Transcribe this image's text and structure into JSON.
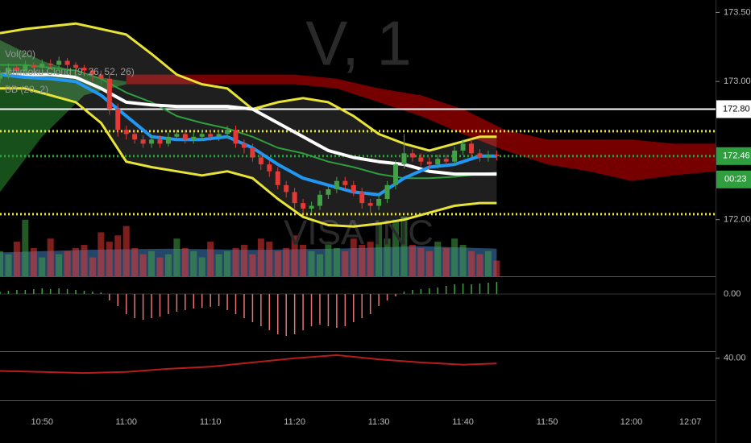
{
  "chart_data": [
    {
      "type": "candlestick",
      "annotations": [
        "Vol(20)",
        "Ichimoku Cloud (9, 26, 52, 26)",
        "BB (20, 2)"
      ],
      "watermark": [
        "V, 1",
        "VISA INC"
      ],
      "up_color": "#43a047",
      "down_color": "#e53935",
      "xlim": [
        "10:45",
        "12:10"
      ],
      "ylim": [
        171.59,
        173.59
      ],
      "xticks": [
        "10:50",
        "11:00",
        "11:10",
        "11:20",
        "11:30",
        "11:40",
        "11:50",
        "12:00",
        "12:07"
      ],
      "yticks": [
        {
          "value": 173.5,
          "label": "173.50"
        },
        {
          "value": 173,
          "label": "173.00"
        },
        {
          "value": 172,
          "label": "172.00"
        }
      ],
      "x": [
        "10:45",
        "10:46",
        "10:47",
        "10:48",
        "10:49",
        "10:50",
        "10:51",
        "10:52",
        "10:53",
        "10:54",
        "10:55",
        "10:56",
        "10:57",
        "10:58",
        "10:59",
        "11:00",
        "11:01",
        "11:02",
        "11:03",
        "11:04",
        "11:05",
        "11:06",
        "11:07",
        "11:08",
        "11:09",
        "11:10",
        "11:11",
        "11:12",
        "11:13",
        "11:14",
        "11:15",
        "11:16",
        "11:17",
        "11:18",
        "11:19",
        "11:20",
        "11:21",
        "11:22",
        "11:23",
        "11:24",
        "11:25",
        "11:26",
        "11:27",
        "11:28",
        "11:29",
        "11:30",
        "11:31",
        "11:32",
        "11:33",
        "11:34",
        "11:35",
        "11:36",
        "11:37",
        "11:38",
        "11:39",
        "11:40",
        "11:41",
        "11:42",
        "11:43",
        "11:44"
      ],
      "open": [
        173.02,
        173.05,
        173.1,
        173.08,
        173.12,
        173.1,
        173.13,
        173.12,
        173.15,
        173.12,
        173.1,
        173.08,
        173.05,
        173.02,
        172.8,
        172.65,
        172.62,
        172.58,
        172.55,
        172.58,
        172.55,
        172.6,
        172.62,
        172.58,
        172.6,
        172.62,
        172.6,
        172.62,
        172.65,
        172.55,
        172.52,
        172.45,
        172.4,
        172.35,
        172.25,
        172.2,
        172.12,
        172.08,
        172.1,
        172.18,
        172.22,
        172.28,
        172.25,
        172.2,
        172.12,
        172.1,
        172.15,
        172.25,
        172.4,
        172.48,
        172.45,
        172.42,
        172.4,
        172.44,
        172.42,
        172.5,
        172.55,
        172.48,
        172.45,
        172.47
      ],
      "high": [
        173.08,
        173.13,
        173.12,
        173.15,
        173.14,
        173.16,
        173.16,
        173.18,
        173.17,
        173.14,
        173.12,
        173.1,
        173.08,
        173.05,
        172.84,
        172.68,
        172.65,
        172.61,
        172.61,
        172.61,
        172.63,
        172.65,
        172.65,
        172.63,
        172.65,
        172.65,
        172.65,
        172.68,
        172.68,
        172.58,
        172.55,
        172.48,
        172.43,
        172.38,
        172.28,
        172.23,
        172.15,
        172.13,
        172.21,
        172.25,
        172.31,
        172.31,
        172.28,
        172.23,
        172.15,
        172.18,
        172.28,
        172.43,
        172.62,
        172.51,
        172.48,
        172.45,
        172.47,
        172.47,
        172.53,
        172.58,
        172.58,
        172.51,
        172.5,
        172.5
      ],
      "low": [
        172.99,
        173.02,
        173.05,
        173.05,
        173.07,
        173.08,
        173.09,
        173.1,
        173.09,
        173.06,
        173.04,
        173.0,
        172.98,
        172.76,
        172.6,
        172.58,
        172.55,
        172.52,
        172.52,
        172.52,
        172.53,
        172.57,
        172.55,
        172.55,
        172.57,
        172.57,
        172.57,
        172.59,
        172.52,
        172.48,
        172.42,
        172.36,
        172.31,
        172.22,
        172.16,
        172.08,
        172.05,
        172.05,
        172.07,
        172.15,
        172.19,
        172.22,
        172.17,
        172.08,
        172.05,
        172.07,
        172.12,
        172.22,
        172.37,
        172.42,
        172.39,
        172.37,
        172.37,
        172.39,
        172.39,
        172.47,
        172.45,
        172.42,
        172.42,
        172.43
      ],
      "close": [
        173.05,
        173.1,
        173.08,
        173.12,
        173.1,
        173.13,
        173.12,
        173.15,
        173.12,
        173.1,
        173.08,
        173.05,
        173.02,
        172.8,
        172.65,
        172.62,
        172.58,
        172.55,
        172.58,
        172.55,
        172.6,
        172.62,
        172.58,
        172.6,
        172.62,
        172.6,
        172.62,
        172.65,
        172.55,
        172.52,
        172.45,
        172.4,
        172.35,
        172.25,
        172.2,
        172.12,
        172.08,
        172.1,
        172.18,
        172.22,
        172.28,
        172.25,
        172.2,
        172.12,
        172.1,
        172.15,
        172.25,
        172.4,
        172.48,
        172.45,
        172.42,
        172.4,
        172.44,
        172.42,
        172.5,
        172.55,
        172.48,
        172.45,
        172.47,
        172.46
      ],
      "clouds": [
        {
          "color": "#1b5e20",
          "x": [
            "10:45",
            "10:50",
            "10:55",
            "11:00"
          ],
          "upper": [
            173.3,
            173.15,
            173.05,
            173.0
          ],
          "lower": [
            172.2,
            172.6,
            172.9,
            172.98
          ]
        },
        {
          "color": "#8b0000",
          "x": [
            "11:00",
            "11:10",
            "11:20",
            "11:25",
            "11:30",
            "11:35",
            "11:40",
            "11:45",
            "11:50",
            "11:55",
            "12:00",
            "12:05",
            "12:10"
          ],
          "upper": [
            173.05,
            173.05,
            173.05,
            173.02,
            172.95,
            172.9,
            172.8,
            172.65,
            172.58,
            172.58,
            172.58,
            172.55,
            172.55
          ],
          "lower": [
            172.98,
            172.98,
            172.98,
            172.95,
            172.85,
            172.75,
            172.62,
            172.5,
            172.4,
            172.35,
            172.28,
            172.32,
            172.35
          ]
        }
      ],
      "series": [
        {
          "color": "#e8e337",
          "width": 3,
          "x": [
            "10:45",
            "10:48",
            "10:51",
            "10:54",
            "10:57",
            "11:00",
            "11:03",
            "11:06",
            "11:09",
            "11:12",
            "11:15",
            "11:18",
            "11:21",
            "11:24",
            "11:27",
            "11:30",
            "11:33",
            "11:36",
            "11:39",
            "11:42",
            "11:44"
          ],
          "values": [
            173.35,
            173.38,
            173.4,
            173.42,
            173.38,
            173.34,
            173.2,
            173.05,
            172.98,
            172.95,
            172.8,
            172.85,
            172.88,
            172.85,
            172.75,
            172.62,
            172.55,
            172.5,
            172.55,
            172.6,
            172.6
          ]
        },
        {
          "color": "#e8e337",
          "width": 3,
          "x": [
            "10:45",
            "10:48",
            "10:51",
            "10:54",
            "10:57",
            "11:00",
            "11:03",
            "11:06",
            "11:09",
            "11:12",
            "11:15",
            "11:18",
            "11:21",
            "11:24",
            "11:27",
            "11:30",
            "11:33",
            "11:36",
            "11:39",
            "11:42",
            "11:44"
          ],
          "values": [
            172.95,
            172.95,
            172.9,
            172.85,
            172.7,
            172.42,
            172.38,
            172.35,
            172.32,
            172.35,
            172.3,
            172.15,
            172.02,
            171.96,
            171.95,
            171.97,
            172.0,
            172.05,
            172.1,
            172.12,
            172.12
          ]
        },
        {
          "color": "#2e9e3e",
          "width": 2,
          "x": [
            "10:45",
            "10:48",
            "10:51",
            "10:54",
            "10:57",
            "11:00",
            "11:03",
            "11:06",
            "11:09",
            "11:12",
            "11:15",
            "11:18",
            "11:21",
            "11:24",
            "11:27",
            "11:30",
            "11:33",
            "11:36",
            "11:39",
            "11:42",
            "11:44"
          ],
          "values": [
            173.12,
            173.12,
            173.1,
            173.08,
            173.02,
            172.92,
            172.85,
            172.75,
            172.7,
            172.66,
            172.6,
            172.52,
            172.48,
            172.42,
            172.38,
            172.33,
            172.3,
            172.3,
            172.31,
            172.33,
            172.34
          ]
        },
        {
          "color": "#ffffff",
          "width": 4,
          "x": [
            "10:45",
            "10:48",
            "10:51",
            "10:54",
            "10:57",
            "11:00",
            "11:03",
            "11:06",
            "11:09",
            "11:12",
            "11:15",
            "11:18",
            "11:21",
            "11:24",
            "11:27",
            "11:30",
            "11:33",
            "11:36",
            "11:39",
            "11:42",
            "11:44"
          ],
          "values": [
            173.05,
            173.05,
            173.05,
            173.03,
            172.95,
            172.85,
            172.83,
            172.82,
            172.82,
            172.82,
            172.8,
            172.7,
            172.6,
            172.5,
            172.45,
            172.42,
            172.4,
            172.35,
            172.33,
            172.33,
            172.33
          ]
        },
        {
          "color": "#2196f3",
          "width": 4,
          "x": [
            "10:45",
            "10:48",
            "10:51",
            "10:54",
            "10:57",
            "11:00",
            "11:03",
            "11:06",
            "11:09",
            "11:12",
            "11:15",
            "11:18",
            "11:21",
            "11:24",
            "11:27",
            "11:30",
            "11:33",
            "11:36",
            "11:39",
            "11:42",
            "11:44"
          ],
          "values": [
            173.05,
            173.03,
            173.02,
            173.0,
            172.9,
            172.75,
            172.6,
            172.58,
            172.58,
            172.6,
            172.52,
            172.4,
            172.3,
            172.25,
            172.2,
            172.18,
            172.3,
            172.38,
            172.4,
            172.46,
            172.46
          ]
        }
      ],
      "levels": [
        {
          "value": 172.64,
          "color": "#e8e337",
          "dotted": true
        },
        {
          "value": 172.04,
          "color": "#e8e337",
          "dotted": true
        },
        {
          "value": 172.8,
          "label": "172.80",
          "color": "#ffffff",
          "dotted": false
        },
        {
          "value": 172.46,
          "label": "172.46",
          "countdown": "00:23",
          "color": "#2e9e3e",
          "dotted": true
        }
      ]
    },
    {
      "type": "bar",
      "ylim": [
        0,
        100
      ],
      "ma_color": "#3f7fbf",
      "x": [
        "10:45",
        "10:46",
        "10:47",
        "10:48",
        "10:49",
        "10:50",
        "10:51",
        "10:52",
        "10:53",
        "10:54",
        "10:55",
        "10:56",
        "10:57",
        "10:58",
        "10:59",
        "11:00",
        "11:01",
        "11:02",
        "11:03",
        "11:04",
        "11:05",
        "11:06",
        "11:07",
        "11:08",
        "11:09",
        "11:10",
        "11:11",
        "11:12",
        "11:13",
        "11:14",
        "11:15",
        "11:16",
        "11:17",
        "11:18",
        "11:19",
        "11:20",
        "11:21",
        "11:22",
        "11:23",
        "11:24",
        "11:25",
        "11:26",
        "11:27",
        "11:28",
        "11:29",
        "11:30",
        "11:31",
        "11:32",
        "11:33",
        "11:34",
        "11:35",
        "11:36",
        "11:37",
        "11:38",
        "11:39",
        "11:40",
        "11:41",
        "11:42",
        "11:43",
        "11:44"
      ],
      "values": [
        40,
        35,
        55,
        90,
        45,
        30,
        60,
        35,
        40,
        45,
        50,
        30,
        70,
        55,
        65,
        80,
        45,
        35,
        40,
        30,
        35,
        60,
        45,
        40,
        30,
        55,
        35,
        40,
        45,
        50,
        35,
        60,
        55,
        40,
        45,
        65,
        50,
        40,
        35,
        55,
        45,
        40,
        60,
        50,
        55,
        85,
        60,
        90,
        95,
        50,
        45,
        40,
        55,
        45,
        60,
        50,
        40,
        35,
        40,
        25
      ],
      "ma_x": [
        "10:45",
        "10:55",
        "11:05",
        "11:15",
        "11:25",
        "11:35",
        "11:44"
      ],
      "ma": [
        38,
        42,
        44,
        42,
        44,
        48,
        44
      ]
    },
    {
      "type": "histogram-bar",
      "ylim": [
        -0.07,
        0.02
      ],
      "pos_color": "#43a047",
      "neg_color": "#e57373",
      "yticks": [
        {
          "value": 0,
          "label": "0.00"
        }
      ],
      "x": [
        "10:45",
        "10:46",
        "10:47",
        "10:48",
        "10:49",
        "10:50",
        "10:51",
        "10:52",
        "10:53",
        "10:54",
        "10:55",
        "10:56",
        "10:57",
        "10:58",
        "10:59",
        "11:00",
        "11:01",
        "11:02",
        "11:03",
        "11:04",
        "11:05",
        "11:06",
        "11:07",
        "11:08",
        "11:09",
        "11:10",
        "11:11",
        "11:12",
        "11:13",
        "11:14",
        "11:15",
        "11:16",
        "11:17",
        "11:18",
        "11:19",
        "11:20",
        "11:21",
        "11:22",
        "11:23",
        "11:24",
        "11:25",
        "11:26",
        "11:27",
        "11:28",
        "11:29",
        "11:30",
        "11:31",
        "11:32",
        "11:33",
        "11:34",
        "11:35",
        "11:36",
        "11:37",
        "11:38",
        "11:39",
        "11:40",
        "11:41",
        "11:42",
        "11:43",
        "11:44"
      ],
      "values": [
        0.003,
        0.004,
        0.005,
        0.005,
        0.006,
        0.007,
        0.006,
        0.007,
        0.006,
        0.005,
        0.004,
        0.003,
        0.002,
        -0.008,
        -0.015,
        -0.025,
        -0.03,
        -0.032,
        -0.03,
        -0.028,
        -0.025,
        -0.022,
        -0.02,
        -0.018,
        -0.017,
        -0.016,
        -0.015,
        -0.02,
        -0.025,
        -0.03,
        -0.035,
        -0.04,
        -0.045,
        -0.05,
        -0.052,
        -0.05,
        -0.045,
        -0.04,
        -0.038,
        -0.04,
        -0.042,
        -0.04,
        -0.035,
        -0.03,
        -0.025,
        -0.015,
        -0.008,
        -0.003,
        0.003,
        0.005,
        0.006,
        0.007,
        0.008,
        0.01,
        0.012,
        0.013,
        0.012,
        0.013,
        0.014,
        0.015
      ]
    },
    {
      "type": "line",
      "ylim": [
        20,
        43
      ],
      "color": "#b71c1c",
      "yticks": [
        {
          "value": 40,
          "label": "40.00"
        }
      ],
      "x": [
        "10:45",
        "10:50",
        "10:55",
        "11:00",
        "11:05",
        "11:10",
        "11:15",
        "11:20",
        "11:25",
        "11:30",
        "11:35",
        "11:40",
        "11:44"
      ],
      "values": [
        34,
        33.5,
        33,
        33.5,
        35,
        36,
        38,
        40,
        41.5,
        39.5,
        38,
        37,
        37.5
      ]
    }
  ]
}
